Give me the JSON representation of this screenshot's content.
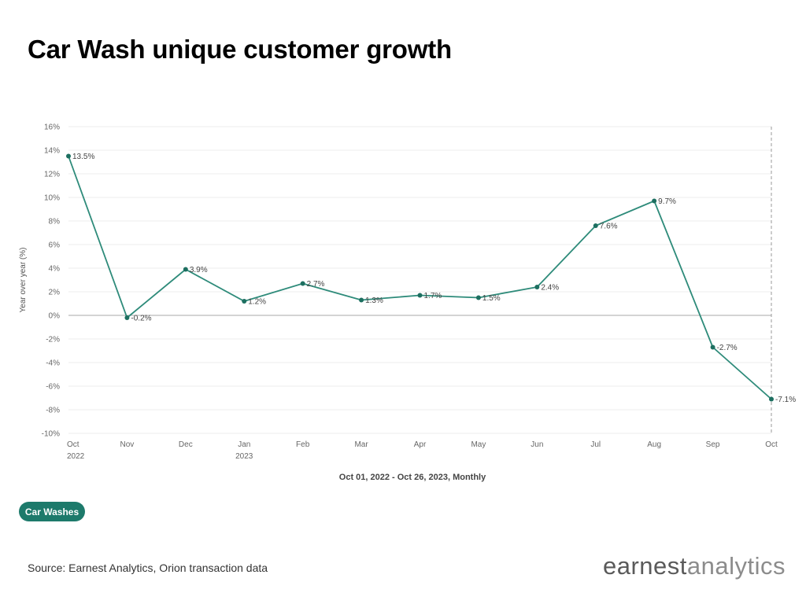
{
  "title": "Car Wash unique customer growth",
  "colors": {
    "line": "#2e8b7a",
    "point": "#1d6f60",
    "pill": "#1d7a6b",
    "grid": "#ececec",
    "zero_line": "#a8a8a8"
  },
  "chart_data": {
    "type": "line",
    "title": "Car Wash unique customer growth",
    "xlabel": "Oct 01, 2022 - Oct 26, 2023, Monthly",
    "ylabel": "Year over year (%)",
    "ylim": [
      -10,
      16
    ],
    "yticks": [
      16,
      14,
      12,
      10,
      8,
      6,
      4,
      2,
      0,
      -2,
      -4,
      -6,
      -8,
      -10
    ],
    "ytick_labels": [
      "16%",
      "14%",
      "12%",
      "10%",
      "8%",
      "6%",
      "4%",
      "2%",
      "0%",
      "-2%",
      "-4%",
      "-6%",
      "-8%",
      "-10%"
    ],
    "categories": [
      "Oct",
      "Nov",
      "Dec",
      "Jan",
      "Feb",
      "Mar",
      "Apr",
      "May",
      "Jun",
      "Jul",
      "Aug",
      "Sep",
      "Oct"
    ],
    "category_sublabels": [
      "2022",
      "",
      "",
      "2023",
      "",
      "",
      "",
      "",
      "",
      "",
      "",
      "",
      ""
    ],
    "grid": true,
    "series": [
      {
        "name": "Car Washes",
        "values": [
          13.5,
          -0.2,
          3.9,
          1.2,
          2.7,
          1.3,
          1.7,
          1.5,
          2.4,
          7.6,
          9.7,
          -2.7,
          -7.1
        ],
        "labels": [
          "13.5%",
          "-0.2%",
          "3.9%",
          "1.2%",
          "2.7%",
          "1.3%",
          "1.7%",
          "1.5%",
          "2.4%",
          "7.6%",
          "9.7%",
          "-2.7%",
          "-7.1%"
        ]
      }
    ]
  },
  "legend": {
    "label": "Car Washes"
  },
  "source": "Source: Earnest Analytics, Orion transaction data",
  "logo": {
    "part1": "earnest",
    "part2": "analytics"
  }
}
